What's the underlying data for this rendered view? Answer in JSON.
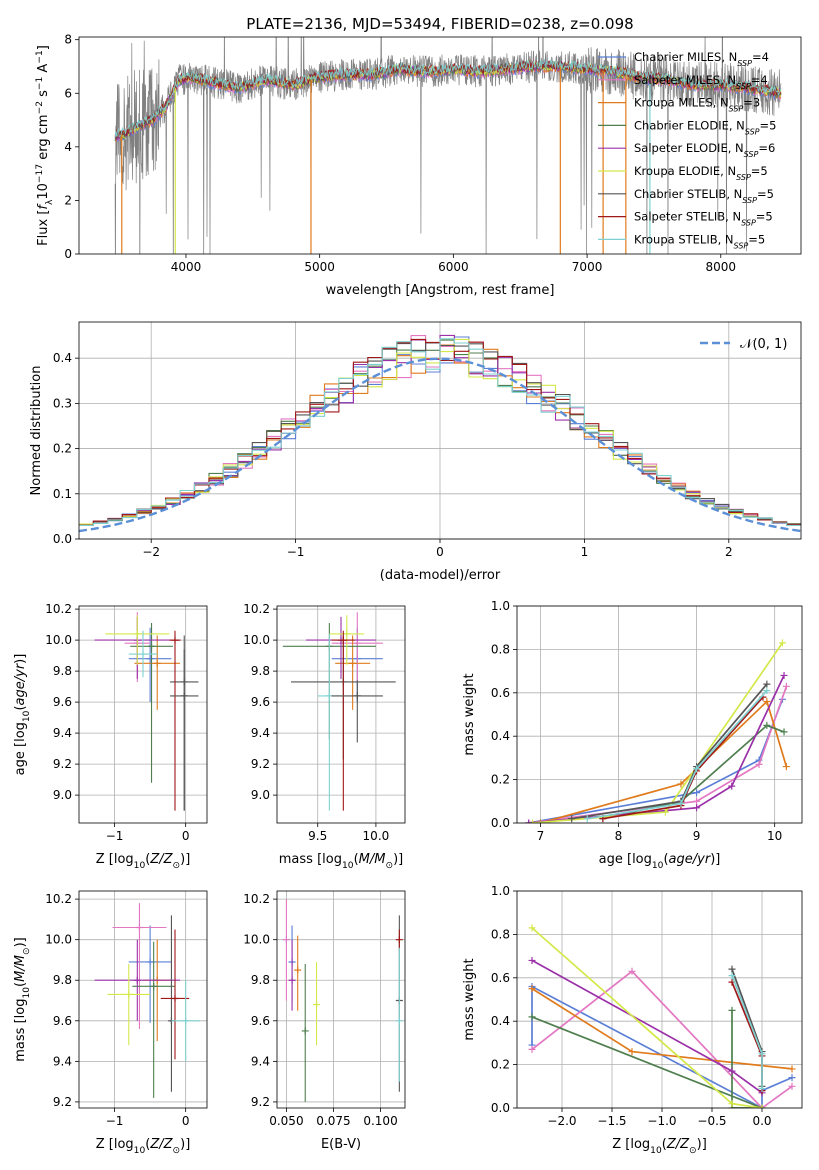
{
  "figure": {
    "title": "PLATE=2136, MJD=53494, FIBERID=0238, z=0.098"
  },
  "models": [
    {
      "name": "Chabrier MILES",
      "nssp": "4",
      "color": "#5b7fd6"
    },
    {
      "name": "Salpeter MILES",
      "nssp": "4",
      "color": "#e377c2"
    },
    {
      "name": "Kroupa MILES",
      "nssp": "3",
      "color": "#e07b1c"
    },
    {
      "name": "Chabrier ELODIE",
      "nssp": "5",
      "color": "#4f7f4f"
    },
    {
      "name": "Salpeter ELODIE",
      "nssp": "6",
      "color": "#9b30a8"
    },
    {
      "name": "Kroupa ELODIE",
      "nssp": "5",
      "color": "#d4e84a"
    },
    {
      "name": "Chabrier STELIB",
      "nssp": "5",
      "color": "#555555"
    },
    {
      "name": "Salpeter STELIB",
      "nssp": "5",
      "color": "#a01818"
    },
    {
      "name": "Kroupa STELIB",
      "nssp": "5",
      "color": "#7fd1d1"
    }
  ],
  "chart_data": [
    {
      "id": "spectrum",
      "type": "line",
      "title": "PLATE=2136, MJD=53494, FIBERID=0238, z=0.098",
      "xlabel": "wavelength [Angstrom, rest frame]",
      "ylabel": "Flux [f_λ 10^-17 erg cm^-2 s^-1 A^-1]",
      "xlim": [
        3200,
        8600
      ],
      "ylim": [
        0,
        8.1
      ],
      "xticks": [
        4000,
        5000,
        6000,
        7000,
        8000
      ],
      "yticks": [
        0,
        2,
        4,
        6,
        8
      ],
      "grid": false,
      "legend": "right",
      "data_color": "#808080",
      "continuum": {
        "x": [
          3470,
          3550,
          3650,
          3750,
          3850,
          3950,
          4050,
          4200,
          4400,
          4600,
          4800,
          5000,
          5200,
          5400,
          5600,
          5800,
          6000,
          6200,
          6400,
          6600,
          6800,
          7000,
          7200,
          7400,
          7600,
          7800,
          8000,
          8200,
          8450
        ],
        "y": [
          4.4,
          4.5,
          4.8,
          5.0,
          5.5,
          6.5,
          6.6,
          6.4,
          6.2,
          6.5,
          6.3,
          6.6,
          6.7,
          6.7,
          6.9,
          6.8,
          6.9,
          6.8,
          6.9,
          7.0,
          7.0,
          6.9,
          6.8,
          6.6,
          6.5,
          6.3,
          6.3,
          6.2,
          6.0
        ]
      },
      "model_dips": [
        {
          "x": 3520,
          "series": "Kroupa MILES"
        },
        {
          "x": 3920,
          "series": "Kroupa ELODIE"
        },
        {
          "x": 4935,
          "series": "Kroupa MILES"
        },
        {
          "x": 6800,
          "series": "Kroupa MILES"
        },
        {
          "x": 7120,
          "series": "Kroupa MILES"
        },
        {
          "x": 7290,
          "series": "Kroupa MILES"
        },
        {
          "x": 7470,
          "series": "Kroupa STELIB"
        }
      ]
    },
    {
      "id": "residuals",
      "type": "histogram",
      "xlabel": "(data-model)/error",
      "ylabel": "Normed distribution",
      "xlim": [
        -2.5,
        2.5
      ],
      "ylim": [
        0,
        0.48
      ],
      "xticks": [
        -2,
        -1,
        0,
        1,
        2
      ],
      "yticks": [
        0,
        0.1,
        0.2,
        0.3,
        0.4
      ],
      "grid": true,
      "legend": "top-right",
      "legend_label": "𝒩(0, 1)",
      "reference_curve": {
        "name": "𝒩(0, 1)",
        "mean": 0,
        "sigma": 1,
        "color": "#5b8fd6"
      },
      "bin_width": 0.1
    },
    {
      "id": "age-vs-Z",
      "type": "errorbar",
      "xlabel": "Z [log10(Z/Z⊙)]",
      "ylabel": "age [log10(age/yr)]",
      "xlim": [
        -1.5,
        0.3
      ],
      "ylim": [
        8.82,
        10.22
      ],
      "xticks": [
        -1,
        0
      ],
      "yticks": [
        9.0,
        9.2,
        9.4,
        9.6,
        9.8,
        10.0,
        10.2
      ],
      "grid": true,
      "points": [
        {
          "series": "Chabrier MILES",
          "x": -0.5,
          "xerr": 0.3,
          "y": 9.88,
          "yerr": [
            0.28,
            0.2
          ]
        },
        {
          "series": "Salpeter MILES",
          "x": -0.68,
          "xerr": 0.18,
          "y": 9.98,
          "yerr": [
            0.25,
            0.2
          ]
        },
        {
          "series": "Kroupa MILES",
          "x": -0.4,
          "xerr": 0.32,
          "y": 9.85,
          "yerr": [
            0.3,
            0.18
          ]
        },
        {
          "series": "Chabrier ELODIE",
          "x": -0.48,
          "xerr": 0.3,
          "y": 9.96,
          "yerr": [
            0.88,
            0.15
          ]
        },
        {
          "series": "Salpeter ELODIE",
          "x": -0.68,
          "xerr": 0.6,
          "y": 10.0,
          "yerr": [
            0.25,
            0.15
          ]
        },
        {
          "series": "Kroupa ELODIE",
          "x": -0.68,
          "xerr": 0.45,
          "y": 10.04,
          "yerr": [
            0.2,
            0.12
          ]
        },
        {
          "series": "Chabrier STELIB",
          "x": -0.02,
          "xerr": 0.2,
          "y": 9.73,
          "yerr": [
            0.83,
            0.3
          ]
        },
        {
          "series": "Salpeter STELIB",
          "x": -0.15,
          "xerr": 0.08,
          "y": 10.0,
          "yerr": [
            1.1,
            0.06
          ]
        },
        {
          "series": "Kroupa STELIB",
          "x": -0.6,
          "xerr": 0.2,
          "y": 9.91,
          "yerr": [
            0.15,
            0.15
          ]
        },
        {
          "series": "Chabrier STELIB",
          "x": -0.02,
          "xerr": 0.2,
          "y": 9.64,
          "yerr": [
            0.74,
            0.3
          ]
        }
      ]
    },
    {
      "id": "age-vs-mass",
      "type": "errorbar",
      "xlabel": "mass [log10(M/M⊙)]",
      "ylabel": "",
      "xlim": [
        9.15,
        10.25
      ],
      "ylim": [
        8.82,
        10.22
      ],
      "xticks": [
        9.5,
        10.0
      ],
      "yticks": [
        9.0,
        9.2,
        9.4,
        9.6,
        9.8,
        10.0,
        10.2
      ],
      "grid": true,
      "points": [
        {
          "series": "Chabrier MILES",
          "x": 9.84,
          "xerr": 0.22,
          "y": 9.88,
          "yerr": [
            0.28,
            0.2
          ]
        },
        {
          "series": "Salpeter MILES",
          "x": 9.84,
          "xerr": 0.22,
          "y": 9.98,
          "yerr": [
            0.25,
            0.2
          ]
        },
        {
          "series": "Kroupa MILES",
          "x": 9.8,
          "xerr": 0.15,
          "y": 9.85,
          "yerr": [
            0.3,
            0.18
          ]
        },
        {
          "series": "Chabrier ELODIE",
          "x": 9.6,
          "xerr": 0.4,
          "y": 9.96,
          "yerr": [
            0.6,
            0.15
          ]
        },
        {
          "series": "Salpeter ELODIE",
          "x": 9.7,
          "xerr": 0.3,
          "y": 10.0,
          "yerr": [
            0.25,
            0.15
          ]
        },
        {
          "series": "Kroupa ELODIE",
          "x": 9.75,
          "xerr": 0.15,
          "y": 10.04,
          "yerr": [
            0.2,
            0.12
          ]
        },
        {
          "series": "Chabrier STELIB",
          "x": 9.72,
          "xerr": 0.45,
          "y": 9.73,
          "yerr": [
            0.5,
            0.3
          ]
        },
        {
          "series": "Salpeter STELIB",
          "x": 9.72,
          "xerr": 0.1,
          "y": 10.0,
          "yerr": [
            1.1,
            0.06
          ]
        },
        {
          "series": "Kroupa STELIB",
          "x": 9.6,
          "xerr": 0.1,
          "y": 9.64,
          "yerr": [
            0.74,
            0.4
          ]
        },
        {
          "series": "Chabrier STELIB",
          "x": 9.84,
          "xerr": 0.22,
          "y": 9.64,
          "yerr": [
            0.3,
            0.1
          ]
        }
      ]
    },
    {
      "id": "weight-vs-age",
      "type": "line",
      "xlabel": "age [log10(age/yr)]",
      "ylabel": "mass weight",
      "xlim": [
        6.7,
        10.35
      ],
      "ylim": [
        0,
        1.0
      ],
      "xticks": [
        7,
        8,
        9,
        10
      ],
      "yticks": [
        0.0,
        0.2,
        0.4,
        0.6,
        0.8,
        1.0
      ],
      "grid": true,
      "series": [
        {
          "name": "Chabrier MILES",
          "x": [
            6.85,
            9.0,
            9.8,
            10.1
          ],
          "y": [
            0.0,
            0.14,
            0.29,
            0.57
          ]
        },
        {
          "name": "Salpeter MILES",
          "x": [
            6.85,
            9.0,
            9.8,
            10.15
          ],
          "y": [
            0.0,
            0.1,
            0.27,
            0.63
          ]
        },
        {
          "name": "Kroupa MILES",
          "x": [
            7.0,
            8.8,
            9.9,
            10.15
          ],
          "y": [
            0.0,
            0.18,
            0.56,
            0.26
          ]
        },
        {
          "name": "Chabrier ELODIE",
          "x": [
            7.8,
            8.8,
            9.9,
            10.12
          ],
          "y": [
            0.02,
            0.1,
            0.45,
            0.42
          ]
        },
        {
          "name": "Salpeter ELODIE",
          "x": [
            6.85,
            9.0,
            9.45,
            10.12
          ],
          "y": [
            0.0,
            0.07,
            0.17,
            0.68
          ]
        },
        {
          "name": "Kroupa ELODIE",
          "x": [
            6.9,
            8.6,
            10.1
          ],
          "y": [
            0.0,
            0.05,
            0.83
          ]
        },
        {
          "name": "Chabrier STELIB",
          "x": [
            7.4,
            8.8,
            9.0,
            9.9
          ],
          "y": [
            0.02,
            0.1,
            0.26,
            0.64
          ]
        },
        {
          "name": "Salpeter STELIB",
          "x": [
            7.8,
            8.8,
            9.0,
            9.85
          ],
          "y": [
            0.02,
            0.08,
            0.24,
            0.58
          ]
        },
        {
          "name": "Kroupa STELIB",
          "x": [
            7.6,
            8.8,
            9.0,
            9.9
          ],
          "y": [
            0.02,
            0.09,
            0.25,
            0.61
          ]
        }
      ]
    },
    {
      "id": "mass-vs-Z",
      "type": "errorbar",
      "xlabel": "Z [log10(Z/Z⊙)]",
      "ylabel": "mass [log10(M/M⊙)]",
      "xlim": [
        -1.5,
        0.3
      ],
      "ylim": [
        9.17,
        10.24
      ],
      "xticks": [
        -1,
        0
      ],
      "yticks": [
        9.2,
        9.4,
        9.6,
        9.8,
        10.0,
        10.2
      ],
      "grid": true,
      "points": [
        {
          "series": "Chabrier MILES",
          "x": -0.5,
          "xerr": 0.3,
          "y": 9.89,
          "yerr": [
            0.3,
            0.18
          ]
        },
        {
          "series": "Salpeter MILES",
          "x": -0.65,
          "xerr": 0.38,
          "y": 10.06,
          "yerr": [
            0.5,
            0.12
          ]
        },
        {
          "series": "Kroupa MILES",
          "x": -0.4,
          "xerr": 0.2,
          "y": 9.8,
          "yerr": [
            0.3,
            0.2
          ]
        },
        {
          "series": "Chabrier ELODIE",
          "x": -0.45,
          "xerr": 0.3,
          "y": 9.77,
          "yerr": [
            0.55,
            0.22
          ]
        },
        {
          "series": "Salpeter ELODIE",
          "x": -0.68,
          "xerr": 0.6,
          "y": 9.8,
          "yerr": [
            0.2,
            0.2
          ]
        },
        {
          "series": "Kroupa ELODIE",
          "x": -0.8,
          "xerr": 0.3,
          "y": 9.73,
          "yerr": [
            0.25,
            0.15
          ]
        },
        {
          "series": "Chabrier STELIB",
          "x": -0.2,
          "xerr": 0.02,
          "y": 9.6,
          "yerr": [
            0.35,
            0.52
          ]
        },
        {
          "series": "Salpeter STELIB",
          "x": -0.15,
          "xerr": 0.2,
          "y": 9.71,
          "yerr": [
            0.3,
            0.34
          ]
        },
        {
          "series": "Kroupa STELIB",
          "x": 0.0,
          "xerr": 0.2,
          "y": 9.6,
          "yerr": [
            0.2,
            0.2
          ]
        }
      ]
    },
    {
      "id": "mass-vs-ebv",
      "type": "errorbar",
      "xlabel": "E(B-V)",
      "ylabel": "",
      "xlim": [
        0.045,
        0.113
      ],
      "ylim": [
        9.17,
        10.24
      ],
      "xticks": [
        0.05,
        0.075,
        0.1
      ],
      "xticklabels": [
        "0.050",
        "0.075",
        "0.100"
      ],
      "yticks": [
        9.2,
        9.4,
        9.6,
        9.8,
        10.0,
        10.2
      ],
      "grid": true,
      "points": [
        {
          "series": "Chabrier MILES",
          "x": 0.053,
          "y": 9.89,
          "yerr": [
            0.2,
            0.18
          ]
        },
        {
          "series": "Salpeter MILES",
          "x": 0.05,
          "y": 10.0,
          "yerr": [
            0.3,
            0.2
          ]
        },
        {
          "series": "Kroupa MILES",
          "x": 0.056,
          "y": 9.85,
          "yerr": [
            0.2,
            0.17
          ]
        },
        {
          "series": "Chabrier ELODIE",
          "x": 0.06,
          "y": 9.55,
          "yerr": [
            0.35,
            0.33
          ]
        },
        {
          "series": "Salpeter ELODIE",
          "x": 0.053,
          "y": 9.8,
          "yerr": [
            0.15,
            0.2
          ]
        },
        {
          "series": "Kroupa ELODIE",
          "x": 0.066,
          "y": 9.68,
          "yerr": [
            0.2,
            0.21
          ]
        },
        {
          "series": "Chabrier STELIB",
          "x": 0.11,
          "y": 9.7,
          "yerr": [
            0.45,
            0.42
          ]
        },
        {
          "series": "Salpeter STELIB",
          "x": 0.11,
          "y": 10.0,
          "yerr": [
            0.05,
            0.05
          ]
        },
        {
          "series": "Kroupa STELIB",
          "x": 0.11,
          "y": 9.6,
          "yerr": [
            0.3,
            0.36
          ]
        }
      ]
    },
    {
      "id": "weight-vs-Z",
      "type": "line",
      "xlabel": "Z [log10(Z/Z⊙)]",
      "ylabel": "mass weight",
      "xlim": [
        -2.45,
        0.4
      ],
      "ylim": [
        0,
        1.0
      ],
      "xticks": [
        -2.0,
        -1.5,
        -1.0,
        -0.5,
        0.0
      ],
      "yticks": [
        0.0,
        0.2,
        0.4,
        0.6,
        0.8,
        1.0
      ],
      "grid": true,
      "series": [
        {
          "name": "Chabrier MILES",
          "x": [
            -2.3,
            -2.3,
            0.0,
            0.0,
            0.3
          ],
          "y": [
            0.29,
            0.56,
            0.0,
            0.08,
            0.14
          ]
        },
        {
          "name": "Salpeter MILES",
          "x": [
            -2.3,
            -1.3,
            0.0,
            0.3
          ],
          "y": [
            0.27,
            0.63,
            0.0,
            0.1
          ]
        },
        {
          "name": "Kroupa MILES",
          "x": [
            -2.3,
            -1.3,
            0.3
          ],
          "y": [
            0.55,
            0.26,
            0.18
          ]
        },
        {
          "name": "Chabrier ELODIE",
          "x": [
            -2.3,
            0.0,
            -0.3,
            -0.3
          ],
          "y": [
            0.42,
            0.0,
            0.0,
            0.45
          ]
        },
        {
          "name": "Salpeter ELODIE",
          "x": [
            -2.3,
            -0.3,
            0.0
          ],
          "y": [
            0.68,
            0.17,
            0.07
          ]
        },
        {
          "name": "Kroupa ELODIE",
          "x": [
            -2.3,
            -0.3,
            0.0
          ],
          "y": [
            0.83,
            0.02,
            0.0
          ]
        },
        {
          "name": "Chabrier STELIB",
          "x": [
            -0.3,
            0.0,
            0.0
          ],
          "y": [
            0.64,
            0.26,
            0.1
          ]
        },
        {
          "name": "Salpeter STELIB",
          "x": [
            -0.3,
            0.0,
            0.0
          ],
          "y": [
            0.58,
            0.24,
            0.08
          ]
        },
        {
          "name": "Kroupa STELIB",
          "x": [
            -0.3,
            0.0,
            0.0
          ],
          "y": [
            0.61,
            0.25,
            0.09
          ]
        }
      ]
    }
  ]
}
